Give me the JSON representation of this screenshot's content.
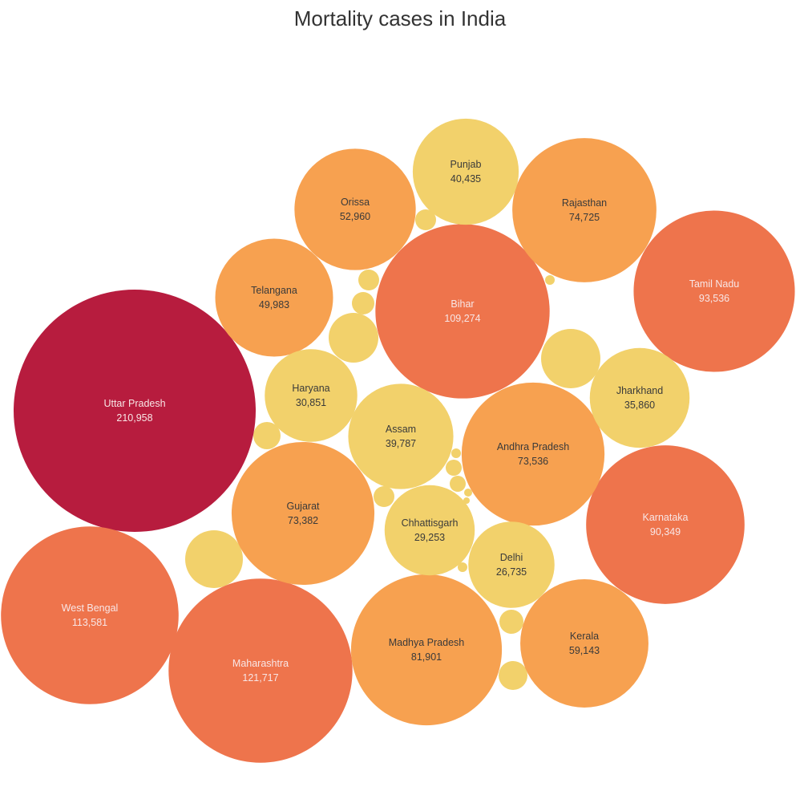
{
  "chart_data": {
    "type": "bubble",
    "title": "Mortality cases in India",
    "colors": {
      "highest": "#b71c3e",
      "high": "#ee744c",
      "medium": "#f7a150",
      "low": "#f2d16b"
    },
    "label_colors": {
      "light": "#f8e6e6",
      "dark": "#3a3a3a"
    },
    "series": [
      {
        "name": "Uttar Pradesh",
        "value": 210958,
        "display": "210,958",
        "tier": "highest"
      },
      {
        "name": "Maharashtra",
        "value": 121717,
        "display": "121,717",
        "tier": "high"
      },
      {
        "name": "West Bengal",
        "value": 113581,
        "display": "113,581",
        "tier": "high"
      },
      {
        "name": "Bihar",
        "value": 109274,
        "display": "109,274",
        "tier": "high"
      },
      {
        "name": "Tamil Nadu",
        "value": 93536,
        "display": "93,536",
        "tier": "high"
      },
      {
        "name": "Karnataka",
        "value": 90349,
        "display": "90,349",
        "tier": "high"
      },
      {
        "name": "Madhya Pradesh",
        "value": 81901,
        "display": "81,901",
        "tier": "medium"
      },
      {
        "name": "Rajasthan",
        "value": 74725,
        "display": "74,725",
        "tier": "medium"
      },
      {
        "name": "Andhra Pradesh",
        "value": 73536,
        "display": "73,536",
        "tier": "medium"
      },
      {
        "name": "Gujarat",
        "value": 73382,
        "display": "73,382",
        "tier": "medium"
      },
      {
        "name": "Kerala",
        "value": 59143,
        "display": "59,143",
        "tier": "medium"
      },
      {
        "name": "Orissa",
        "value": 52960,
        "display": "52,960",
        "tier": "medium"
      },
      {
        "name": "Telangana",
        "value": 49983,
        "display": "49,983",
        "tier": "medium"
      },
      {
        "name": "Punjab",
        "value": 40435,
        "display": "40,435",
        "tier": "low"
      },
      {
        "name": "Assam",
        "value": 39787,
        "display": "39,787",
        "tier": "low"
      },
      {
        "name": "Jharkhand",
        "value": 35860,
        "display": "35,860",
        "tier": "low"
      },
      {
        "name": "Haryana",
        "value": 30851,
        "display": "30,851",
        "tier": "low"
      },
      {
        "name": "Chhattisgarh",
        "value": 29253,
        "display": "29,253",
        "tier": "low"
      },
      {
        "name": "Delhi",
        "value": 26735,
        "display": "26,735",
        "tier": "low"
      }
    ],
    "unlabeled_bubble_count": 17
  }
}
